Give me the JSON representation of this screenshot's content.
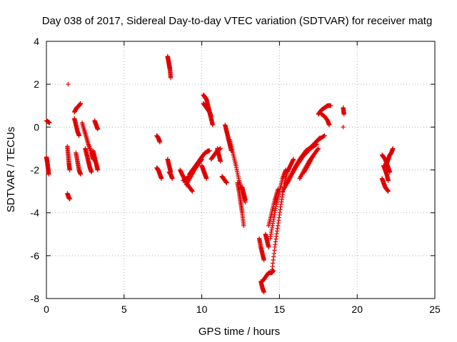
{
  "chart_data": {
    "type": "scatter",
    "title": "Day 038 of 2017, Sidereal Day-to-day VTEC variation (SDTVAR) for receiver matg",
    "xlabel": "GPS time / hours",
    "ylabel": "SDTVAR / TECUs",
    "xlim": [
      0,
      25
    ],
    "ylim": [
      -8,
      4
    ],
    "xticks": [
      0,
      5,
      10,
      15,
      20,
      25
    ],
    "yticks": [
      -8,
      -6,
      -4,
      -2,
      0,
      2,
      4
    ],
    "grid": true,
    "marker": "+",
    "marker_color": "#e00000",
    "tracks": [
      {
        "x": [
          0.0,
          0.1,
          0.2
        ],
        "y": [
          0.3,
          0.25,
          0.2
        ]
      },
      {
        "x": [
          0.0,
          0.05,
          0.1,
          0.15
        ],
        "y": [
          -1.4,
          -1.6,
          -1.9,
          -2.2
        ]
      },
      {
        "x": [
          1.35,
          1.4,
          1.45,
          1.5
        ],
        "y": [
          -0.9,
          -1.3,
          -1.7,
          -2.0
        ]
      },
      {
        "x": [
          1.4
        ],
        "y": [
          2.0
        ]
      },
      {
        "x": [
          1.35,
          1.4,
          1.45,
          1.5
        ],
        "y": [
          -3.1,
          -3.2,
          -3.3,
          -3.35
        ]
      },
      {
        "x": [
          1.8,
          1.95,
          2.1,
          2.2
        ],
        "y": [
          0.7,
          0.9,
          1.0,
          1.1
        ]
      },
      {
        "x": [
          1.8,
          1.9,
          2.0,
          2.1
        ],
        "y": [
          0.4,
          0.1,
          -0.2,
          -0.4
        ]
      },
      {
        "x": [
          1.9,
          2.0,
          2.1,
          2.2
        ],
        "y": [
          -1.2,
          -1.6,
          -2.0,
          -2.2
        ]
      },
      {
        "x": [
          2.3,
          2.5,
          2.7,
          2.9,
          3.0
        ],
        "y": [
          0.2,
          -0.3,
          -0.8,
          -1.2,
          -1.5
        ]
      },
      {
        "x": [
          2.5,
          2.6,
          2.7,
          2.8,
          2.9
        ],
        "y": [
          -1.0,
          -1.3,
          -1.6,
          -1.9,
          -2.1
        ]
      },
      {
        "x": [
          3.1,
          3.2,
          3.3
        ],
        "y": [
          0.3,
          0.1,
          -0.1
        ]
      },
      {
        "x": [
          3.0,
          3.1,
          3.2,
          3.3
        ],
        "y": [
          -1.1,
          -1.4,
          -1.7,
          -2.0
        ]
      },
      {
        "x": [
          7.1,
          7.2,
          7.3
        ],
        "y": [
          -0.4,
          -0.5,
          -0.7
        ]
      },
      {
        "x": [
          7.1,
          7.2,
          7.3,
          7.4
        ],
        "y": [
          -1.9,
          -2.0,
          -2.2,
          -2.4
        ]
      },
      {
        "x": [
          7.8,
          7.85,
          7.9,
          7.95,
          8.0
        ],
        "y": [
          3.3,
          3.1,
          2.9,
          2.7,
          2.3
        ]
      },
      {
        "x": [
          7.8,
          7.9,
          8.0
        ],
        "y": [
          -1.5,
          -1.8,
          -2.1
        ]
      },
      {
        "x": [
          7.9,
          8.0,
          8.1
        ],
        "y": [
          -2.1,
          -2.2,
          -2.4
        ]
      },
      {
        "x": [
          8.6,
          8.8,
          9.0,
          9.2,
          9.4
        ],
        "y": [
          -2.0,
          -2.3,
          -2.6,
          -2.8,
          -3.0
        ]
      },
      {
        "x": [
          8.8,
          9.0,
          9.2,
          9.4,
          9.6,
          9.8,
          10.0
        ],
        "y": [
          -2.5,
          -2.4,
          -2.3,
          -2.1,
          -1.9,
          -1.7,
          -1.5
        ]
      },
      {
        "x": [
          9.0,
          9.3,
          9.6,
          9.9,
          10.2,
          10.5
        ],
        "y": [
          -2.7,
          -2.3,
          -1.9,
          -1.5,
          -1.2,
          -1.1
        ]
      },
      {
        "x": [
          9.2,
          9.5,
          9.8,
          10.1,
          10.4
        ],
        "y": [
          -2.2,
          -1.9,
          -1.6,
          -1.3,
          -1.1
        ]
      },
      {
        "x": [
          10.0,
          10.1,
          10.2,
          10.3
        ],
        "y": [
          -1.8,
          -2.0,
          -2.2,
          -2.4
        ]
      },
      {
        "x": [
          10.1,
          10.2,
          10.3,
          10.4,
          10.5,
          10.6,
          10.7
        ],
        "y": [
          1.5,
          1.4,
          1.3,
          1.0,
          0.7,
          0.4,
          0.1
        ]
      },
      {
        "x": [
          10.1,
          10.3,
          10.5,
          10.6
        ],
        "y": [
          1.1,
          0.9,
          0.7,
          0.5
        ]
      },
      {
        "x": [
          10.6,
          10.8,
          11.0,
          11.2
        ],
        "y": [
          -1.5,
          -1.3,
          -1.1,
          -1.0
        ]
      },
      {
        "x": [
          11.0,
          11.1,
          11.2
        ],
        "y": [
          -1.0,
          -1.3,
          -1.6
        ]
      },
      {
        "x": [
          11.3,
          11.4,
          11.5,
          11.6
        ],
        "y": [
          -2.3,
          -2.4,
          -2.5,
          -2.6
        ]
      },
      {
        "x": [
          11.5,
          11.6,
          11.7,
          11.8,
          11.9
        ],
        "y": [
          0.1,
          -0.2,
          -0.5,
          -0.8,
          -1.1
        ]
      },
      {
        "x": [
          11.8,
          12.0,
          12.2,
          12.4,
          12.6,
          12.8
        ],
        "y": [
          -0.6,
          -1.2,
          -1.8,
          -2.5,
          -3.0,
          -3.5
        ]
      },
      {
        "x": [
          12.3,
          12.4,
          12.5,
          12.6,
          12.7
        ],
        "y": [
          -2.6,
          -3.0,
          -3.5,
          -4.0,
          -4.6
        ]
      },
      {
        "x": [
          12.6,
          12.7,
          12.8
        ],
        "y": [
          -2.8,
          -3.1,
          -3.4
        ]
      },
      {
        "x": [
          13.7,
          13.8,
          13.9,
          14.0
        ],
        "y": [
          -5.2,
          -5.6,
          -5.9,
          -6.2
        ]
      },
      {
        "x": [
          13.8,
          13.9,
          14.0
        ],
        "y": [
          -7.2,
          -7.5,
          -7.7
        ]
      },
      {
        "x": [
          13.9,
          14.1,
          14.3,
          14.5,
          14.6
        ],
        "y": [
          -7.2,
          -7.0,
          -6.8,
          -6.8,
          -6.7
        ]
      },
      {
        "x": [
          14.1,
          14.2,
          14.3
        ],
        "y": [
          -5.0,
          -5.3,
          -5.6
        ]
      },
      {
        "x": [
          14.5,
          14.7,
          14.9,
          15.1,
          15.3,
          15.5,
          15.7,
          15.9
        ],
        "y": [
          -6.8,
          -5.6,
          -4.6,
          -3.6,
          -2.7,
          -2.1,
          -1.8,
          -1.5
        ]
      },
      {
        "x": [
          14.4,
          14.6,
          14.8,
          15.0,
          15.2,
          15.4
        ],
        "y": [
          -5.2,
          -4.4,
          -3.6,
          -3.0,
          -2.4,
          -2.0
        ]
      },
      {
        "x": [
          14.3,
          14.5,
          14.7,
          14.9
        ],
        "y": [
          -4.6,
          -4.0,
          -3.4,
          -2.9
        ]
      },
      {
        "x": [
          15.2,
          15.6,
          16.0,
          16.4,
          16.8,
          17.2,
          17.6
        ],
        "y": [
          -3.0,
          -2.5,
          -1.9,
          -1.4,
          -1.1,
          -0.8,
          -0.5
        ]
      },
      {
        "x": [
          15.5,
          15.9,
          16.3,
          16.7,
          17.1,
          17.5,
          17.9
        ],
        "y": [
          -2.6,
          -2.0,
          -1.5,
          -1.1,
          -0.9,
          -0.6,
          -0.4
        ]
      },
      {
        "x": [
          15.8,
          16.2,
          16.6,
          17.0,
          17.4
        ],
        "y": [
          -2.2,
          -1.7,
          -1.3,
          -1.0,
          -0.8
        ]
      },
      {
        "x": [
          16.3,
          16.6,
          16.9,
          17.2
        ],
        "y": [
          -2.4,
          -2.0,
          -1.6,
          -1.3
        ]
      },
      {
        "x": [
          16.6,
          16.9,
          17.2,
          17.5
        ],
        "y": [
          -2.1,
          -1.7,
          -1.3,
          -1.0
        ]
      },
      {
        "x": [
          17.5,
          17.7,
          17.9,
          18.1,
          18.3
        ],
        "y": [
          0.6,
          0.8,
          0.9,
          1.0,
          1.0
        ]
      },
      {
        "x": [
          17.7,
          17.9,
          18.1,
          18.2
        ],
        "y": [
          0.6,
          0.5,
          0.3,
          0.1
        ]
      },
      {
        "x": [
          19.1,
          19.15
        ],
        "y": [
          0.9,
          0.6
        ]
      },
      {
        "x": [
          19.1
        ],
        "y": [
          0.0
        ]
      },
      {
        "x": [
          21.6,
          21.7,
          21.8,
          21.9,
          22.0,
          22.1
        ],
        "y": [
          -1.3,
          -1.4,
          -1.5,
          -1.7,
          -1.9,
          -2.1
        ]
      },
      {
        "x": [
          21.6,
          21.7,
          21.8,
          21.9,
          22.0
        ],
        "y": [
          -2.4,
          -2.6,
          -2.8,
          -2.9,
          -3.0
        ]
      },
      {
        "x": [
          21.8,
          21.9,
          22.0,
          22.1,
          22.2,
          22.3
        ],
        "y": [
          -1.9,
          -1.7,
          -1.5,
          -1.3,
          -1.2,
          -1.0
        ]
      },
      {
        "x": [
          21.7,
          21.8,
          21.9,
          22.0
        ],
        "y": [
          -1.8,
          -2.0,
          -2.2,
          -2.5
        ]
      }
    ]
  }
}
